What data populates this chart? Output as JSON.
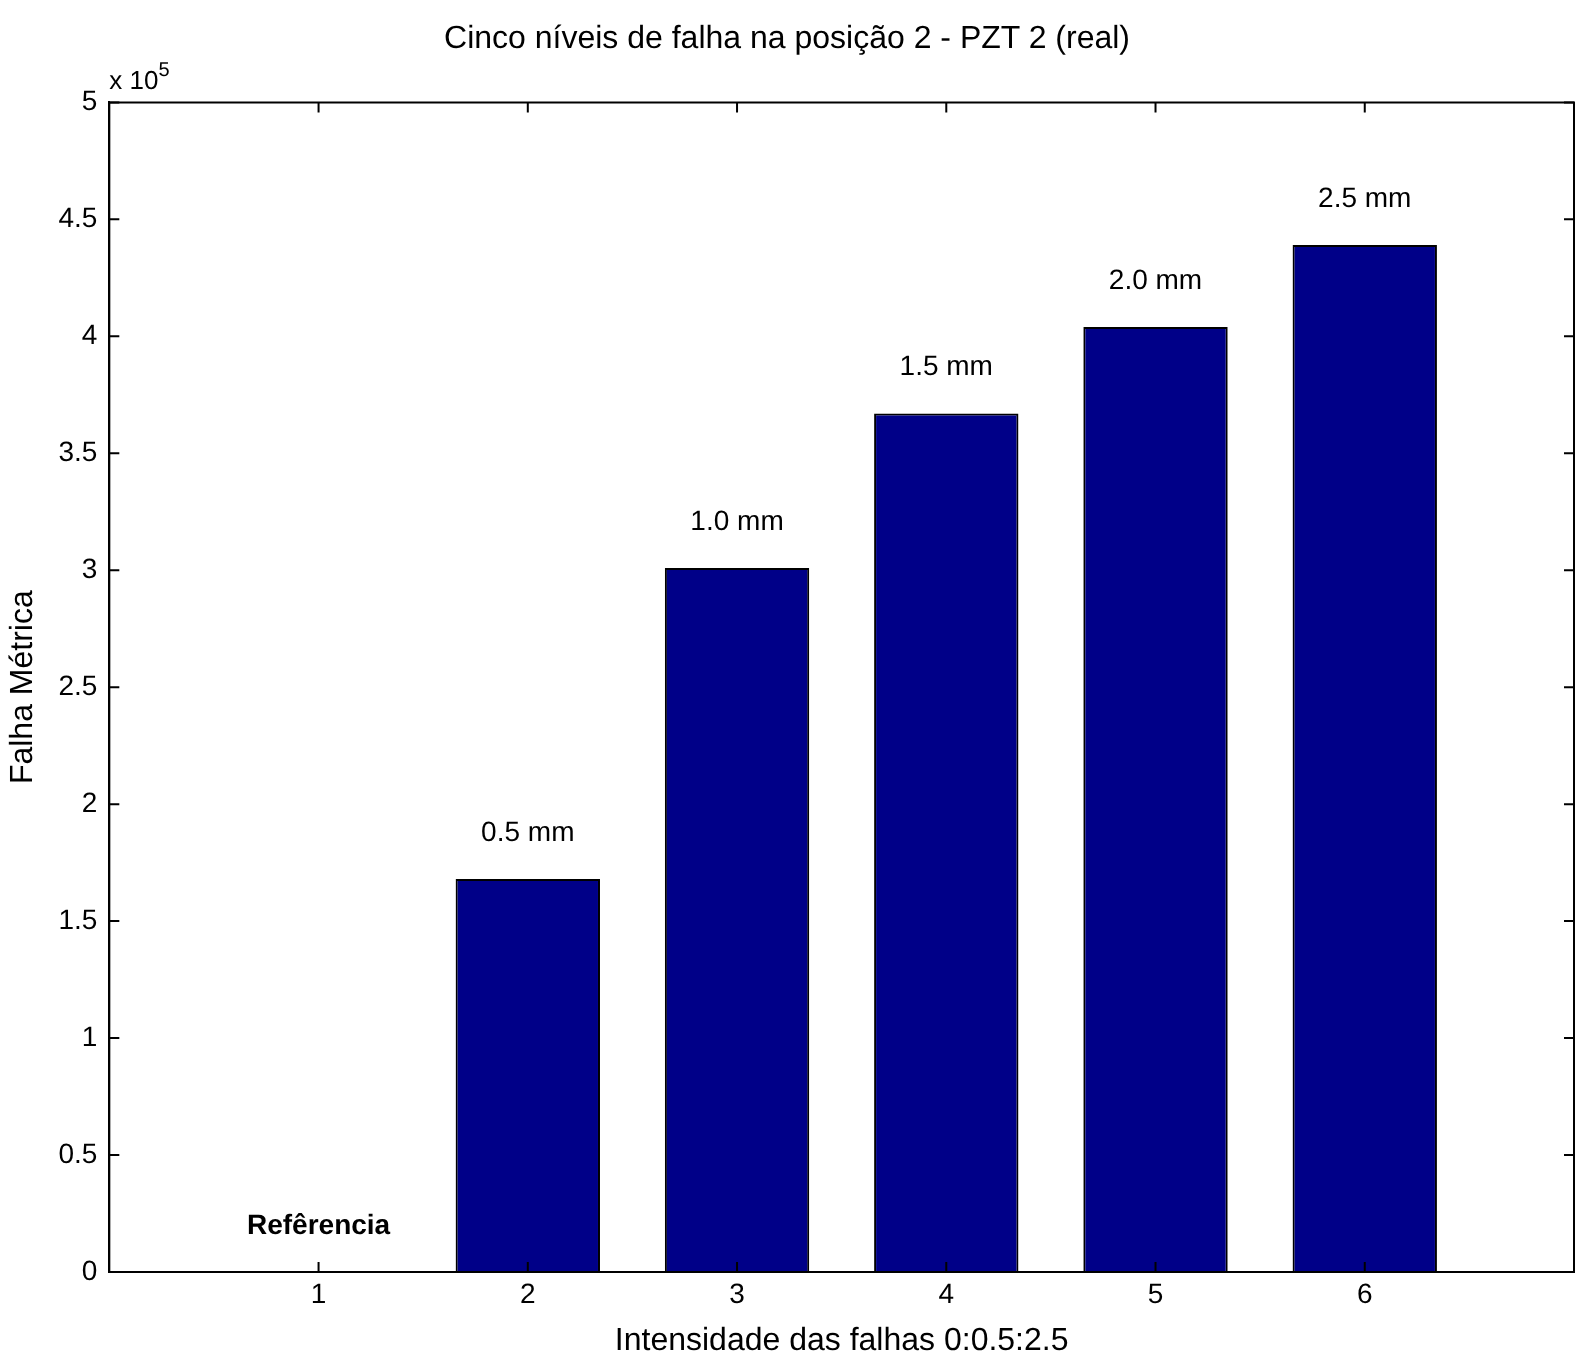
{
  "chart_data": {
    "type": "bar",
    "title": "Cinco níveis de falha na posição 2 - PZT 2 (real)",
    "xlabel": "Intensidade das falhas 0:0.5:2.5",
    "ylabel": "Falha Métrica",
    "annotations": [
      "x 10$^{5}$",
      {
        "text": "Refêrencia",
        "x": 1,
        "y": 0
      },
      {
        "text": "0.5 mm",
        "x": 2,
        "y": 1.68
      },
      {
        "text": "1.0 mm",
        "x": 3,
        "y": 3.01
      },
      {
        "text": "1.5 mm",
        "x": 4,
        "y": 3.67
      },
      {
        "text": "2.0 mm",
        "x": 5,
        "y": 4.04
      },
      {
        "text": "2.5 mm",
        "x": 6,
        "y": 4.39
      }
    ],
    "x": [
      1,
      2,
      3,
      4,
      5,
      6
    ],
    "values": [
      0,
      1.68,
      3.01,
      3.67,
      4.04,
      4.39
    ],
    "color": "#000088",
    "xlim": [
      0,
      7
    ],
    "xticks": [
      1,
      2,
      3,
      4,
      5,
      6
    ],
    "ylim": [
      0,
      5
    ],
    "yticks": [
      0,
      0.5,
      1,
      1.5,
      2,
      2.5,
      3,
      3.5,
      4,
      4.5,
      5
    ],
    "grid": false,
    "legend": false
  }
}
